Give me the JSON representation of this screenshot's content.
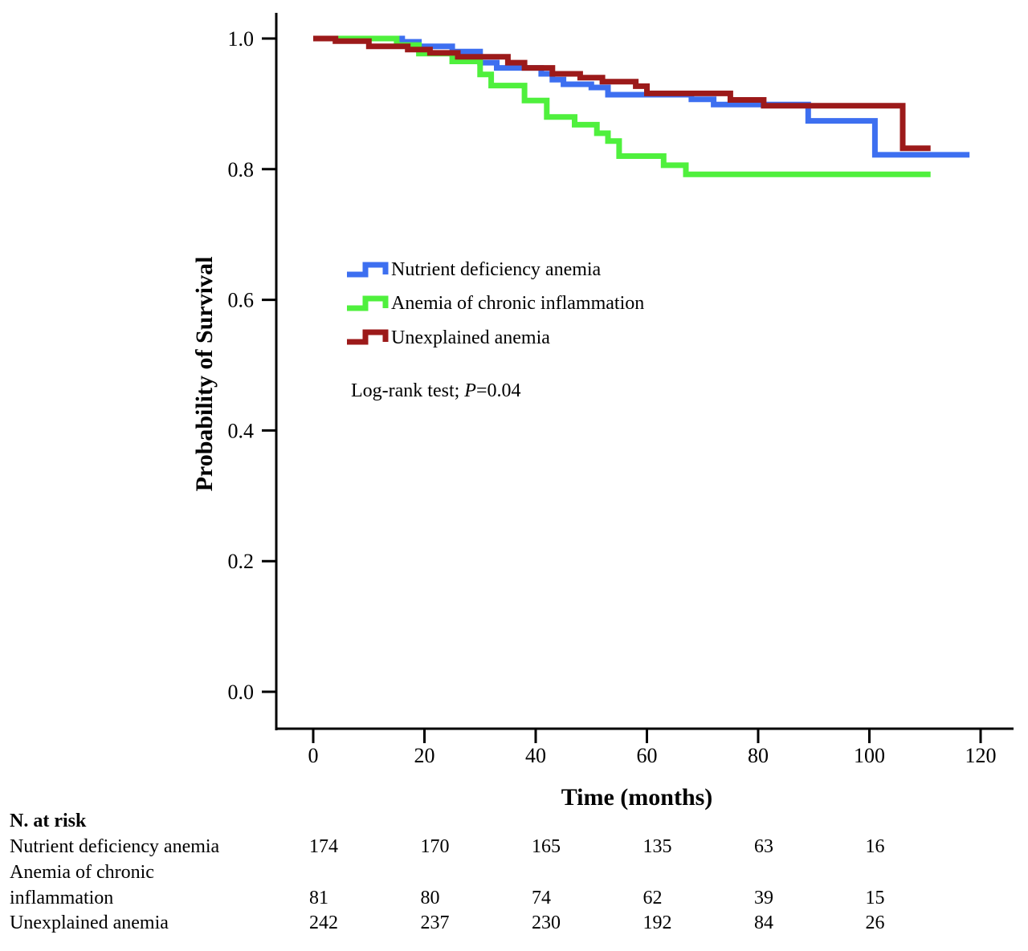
{
  "chart_data": {
    "type": "line",
    "subtype": "kaplan-meier",
    "title": "",
    "xlabel": "Time (months)",
    "ylabel": "Probability of Survival",
    "xlim": [
      -7,
      126
    ],
    "ylim": [
      -0.055,
      1.04
    ],
    "x_ticks": [
      0,
      20,
      40,
      60,
      80,
      100,
      120
    ],
    "x_tick_labels": [
      "0",
      "20",
      "40",
      "60",
      "80",
      "100",
      "120"
    ],
    "y_ticks": [
      0.0,
      0.2,
      0.4,
      0.6,
      0.8,
      1.0
    ],
    "y_tick_labels": [
      "0.0",
      "0.2",
      "0.4",
      "0.6",
      "0.8",
      "1.0"
    ],
    "grid": false,
    "legend_position": "center-left",
    "annotation": {
      "prefix": "Log-rank test; ",
      "italic": "P",
      "suffix": "=0.04"
    },
    "series": [
      {
        "name": "Nutrient deficiency anemia",
        "color": "#3d6ff0",
        "points": [
          [
            0,
            1.0
          ],
          [
            16,
            1.0
          ],
          [
            16,
            0.995
          ],
          [
            19,
            0.995
          ],
          [
            19,
            0.988
          ],
          [
            25,
            0.988
          ],
          [
            25,
            0.98
          ],
          [
            30,
            0.98
          ],
          [
            30,
            0.963
          ],
          [
            33,
            0.963
          ],
          [
            33,
            0.955
          ],
          [
            41,
            0.955
          ],
          [
            41,
            0.946
          ],
          [
            43,
            0.946
          ],
          [
            43,
            0.937
          ],
          [
            45,
            0.937
          ],
          [
            45,
            0.93
          ],
          [
            50,
            0.93
          ],
          [
            50,
            0.925
          ],
          [
            53,
            0.925
          ],
          [
            53,
            0.914
          ],
          [
            68,
            0.914
          ],
          [
            68,
            0.907
          ],
          [
            72,
            0.907
          ],
          [
            72,
            0.899
          ],
          [
            89,
            0.899
          ],
          [
            89,
            0.874
          ],
          [
            101,
            0.874
          ],
          [
            101,
            0.822
          ],
          [
            118,
            0.822
          ]
        ]
      },
      {
        "name": "Anemia of chronic inflammation",
        "color": "#4ff03d",
        "points": [
          [
            0,
            1.0
          ],
          [
            15,
            1.0
          ],
          [
            15,
            0.99
          ],
          [
            19,
            0.99
          ],
          [
            19,
            0.977
          ],
          [
            25,
            0.977
          ],
          [
            25,
            0.965
          ],
          [
            30,
            0.965
          ],
          [
            30,
            0.945
          ],
          [
            32,
            0.945
          ],
          [
            32,
            0.928
          ],
          [
            38,
            0.928
          ],
          [
            38,
            0.905
          ],
          [
            42,
            0.905
          ],
          [
            42,
            0.88
          ],
          [
            47,
            0.88
          ],
          [
            47,
            0.868
          ],
          [
            51,
            0.868
          ],
          [
            51,
            0.855
          ],
          [
            53,
            0.855
          ],
          [
            53,
            0.843
          ],
          [
            55,
            0.843
          ],
          [
            55,
            0.82
          ],
          [
            63,
            0.82
          ],
          [
            63,
            0.806
          ],
          [
            67,
            0.806
          ],
          [
            67,
            0.792
          ],
          [
            111,
            0.792
          ]
        ]
      },
      {
        "name": "Unexplained anemia",
        "color": "#9c1a1a",
        "points": [
          [
            0,
            1.0
          ],
          [
            4,
            1.0
          ],
          [
            4,
            0.996
          ],
          [
            10,
            0.996
          ],
          [
            10,
            0.988
          ],
          [
            17,
            0.988
          ],
          [
            17,
            0.983
          ],
          [
            21,
            0.983
          ],
          [
            21,
            0.978
          ],
          [
            26,
            0.978
          ],
          [
            26,
            0.972
          ],
          [
            35,
            0.972
          ],
          [
            35,
            0.963
          ],
          [
            38,
            0.963
          ],
          [
            38,
            0.955
          ],
          [
            43,
            0.955
          ],
          [
            43,
            0.946
          ],
          [
            48,
            0.946
          ],
          [
            48,
            0.94
          ],
          [
            52,
            0.94
          ],
          [
            52,
            0.934
          ],
          [
            58,
            0.934
          ],
          [
            58,
            0.927
          ],
          [
            60,
            0.927
          ],
          [
            60,
            0.916
          ],
          [
            75,
            0.916
          ],
          [
            75,
            0.906
          ],
          [
            81,
            0.906
          ],
          [
            81,
            0.897
          ],
          [
            106,
            0.897
          ],
          [
            106,
            0.832
          ],
          [
            111,
            0.832
          ]
        ]
      }
    ],
    "risk_table": {
      "header": "N. at risk",
      "times": [
        0,
        20,
        40,
        60,
        80,
        100
      ],
      "rows": [
        {
          "label_lines": [
            "Nutrient deficiency anemia"
          ],
          "values": [
            "174",
            "170",
            "165",
            "135",
            "63",
            "16"
          ]
        },
        {
          "label_lines": [
            "Anemia of chronic",
            "inflammation"
          ],
          "values": [
            "81",
            "80",
            "74",
            "62",
            "39",
            "15"
          ]
        },
        {
          "label_lines": [
            "Unexplained anemia"
          ],
          "values": [
            "242",
            "237",
            "230",
            "192",
            "84",
            "26"
          ]
        }
      ]
    }
  }
}
